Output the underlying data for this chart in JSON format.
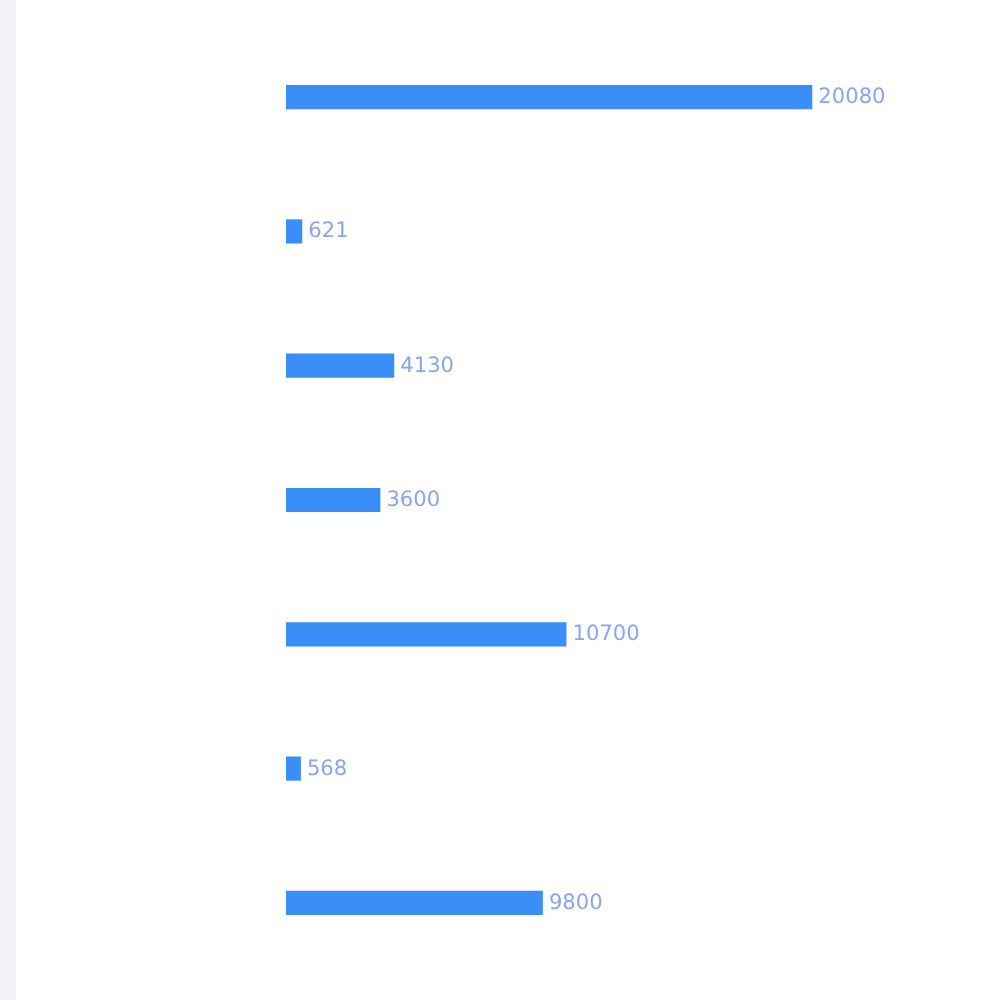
{
  "chart_data": {
    "type": "bar",
    "orientation": "horizontal",
    "categories": [
      null,
      null,
      null,
      null,
      null,
      null,
      null
    ],
    "values": [
      20080,
      621,
      4130,
      3600,
      10700,
      568,
      9800
    ],
    "color": "#3a8ef8",
    "data_labels": true
  }
}
